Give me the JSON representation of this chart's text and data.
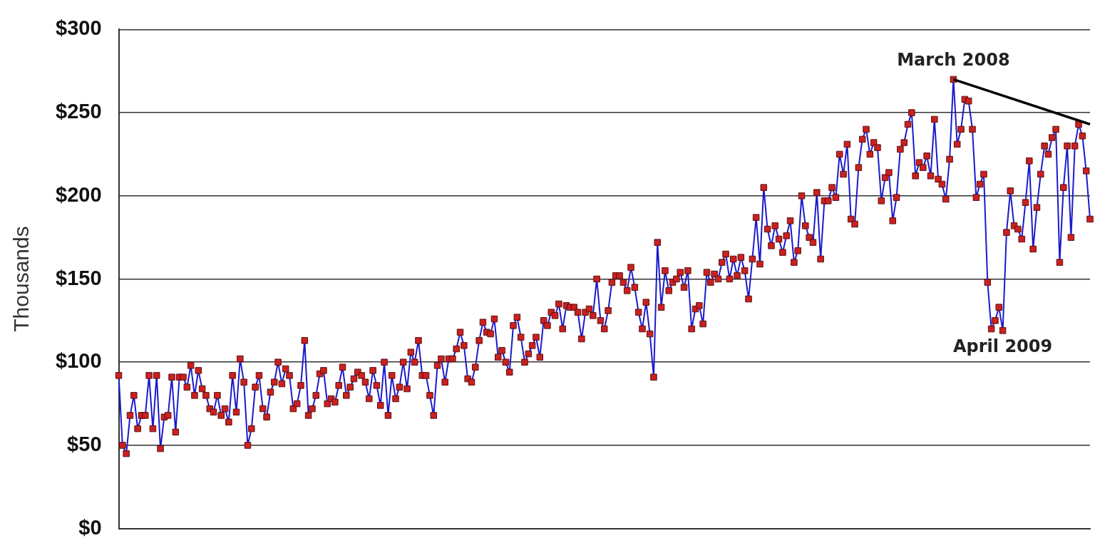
{
  "chart_data": {
    "type": "line",
    "ylabel": "Thousands",
    "categories": [
      null,
      null,
      null,
      null,
      null,
      null,
      null,
      null,
      null,
      null,
      null,
      null,
      null,
      null,
      null,
      null,
      null,
      null,
      null,
      null,
      null,
      null,
      null,
      null,
      null,
      null,
      null,
      null,
      null,
      null,
      null,
      null,
      null,
      null,
      null,
      null,
      null,
      null,
      null,
      null,
      null,
      null,
      null,
      null,
      null,
      null,
      null,
      null,
      null,
      null,
      null,
      null,
      null,
      null,
      null,
      null,
      null,
      null,
      null,
      null,
      null,
      null,
      null,
      null,
      null,
      null,
      null,
      null,
      null,
      null,
      null,
      null,
      null,
      null,
      null,
      null,
      null,
      null,
      null,
      null,
      null,
      null,
      null,
      null,
      null,
      null,
      null,
      null,
      null,
      null,
      null,
      null,
      null,
      null,
      null,
      null,
      null,
      null,
      null,
      null,
      null,
      null,
      null,
      null,
      null,
      null,
      null,
      null,
      null,
      null,
      null,
      null,
      null,
      null,
      null,
      null,
      null,
      null,
      null,
      null,
      null,
      null,
      null,
      null,
      null,
      null,
      null,
      null,
      null,
      null,
      null,
      null,
      null,
      null,
      null,
      null,
      null,
      null,
      null,
      null,
      null,
      null,
      null,
      null,
      null,
      null,
      null,
      null,
      null,
      null,
      null,
      null,
      null,
      null,
      null,
      null,
      null,
      null,
      null,
      null,
      null,
      null,
      null,
      null,
      null,
      null,
      null,
      null,
      null,
      null,
      null,
      null,
      null,
      null,
      null,
      null,
      null,
      null,
      null,
      null,
      null,
      null,
      null,
      null,
      null,
      null,
      null,
      null,
      null,
      null,
      null,
      null,
      null,
      null,
      null,
      null,
      null,
      null,
      null,
      null,
      null,
      null,
      null,
      null,
      null,
      null,
      null,
      null,
      null,
      null,
      null,
      null,
      null,
      null,
      null,
      null,
      null,
      null,
      null,
      null,
      null,
      null,
      null,
      null,
      null,
      null,
      null,
      null,
      null,
      null,
      null,
      null,
      null,
      null,
      null,
      null,
      null,
      null,
      null,
      null,
      null,
      null,
      null,
      null,
      null,
      null,
      null,
      null,
      null,
      null,
      null,
      null,
      null,
      null,
      null,
      null,
      null
    ],
    "series": [
      {
        "color": "#cc2020",
        "values": [
          92,
          50,
          45,
          68,
          80,
          60,
          68,
          68,
          92,
          60,
          92,
          48,
          67,
          68,
          91,
          58,
          91,
          91,
          85,
          98,
          80,
          95,
          84,
          80,
          72,
          70,
          80,
          68,
          72,
          64,
          92,
          70,
          102,
          88,
          50,
          60,
          85,
          92,
          72,
          67,
          82,
          88,
          100,
          87,
          96,
          92,
          72,
          75,
          86,
          113,
          68,
          72,
          80,
          93,
          95,
          75,
          78,
          76,
          86,
          97,
          80,
          85,
          90,
          94,
          92,
          88,
          78,
          95,
          86,
          74,
          100,
          68,
          92,
          78,
          85,
          100,
          84,
          106,
          100,
          113,
          92,
          92,
          80,
          68,
          98,
          102,
          88,
          102,
          102,
          108,
          118,
          110,
          90,
          88,
          97,
          113,
          124,
          118,
          117,
          126,
          103,
          107,
          100,
          94,
          122,
          127,
          115,
          100,
          105,
          110,
          115,
          103,
          125,
          122,
          130,
          128,
          135,
          120,
          134,
          133,
          133,
          130,
          114,
          130,
          132,
          128,
          150,
          125,
          120,
          131,
          148,
          152,
          152,
          148,
          143,
          157,
          145,
          130,
          120,
          136,
          117,
          91,
          172,
          133,
          155,
          143,
          148,
          150,
          154,
          145,
          155,
          120,
          132,
          134,
          123,
          154,
          148,
          153,
          150,
          160,
          165,
          150,
          162,
          152,
          163,
          155,
          138,
          162,
          187,
          159,
          205,
          180,
          170,
          182,
          174,
          166,
          176,
          185,
          160,
          167,
          200,
          182,
          175,
          172,
          202,
          162,
          197,
          197,
          205,
          199,
          225,
          213,
          231,
          186,
          183,
          217,
          234,
          240,
          225,
          232,
          229,
          197,
          211,
          214,
          185,
          199,
          228,
          232,
          243,
          250,
          212,
          220,
          217,
          224,
          212,
          246,
          210,
          207,
          198,
          222,
          270,
          231,
          240,
          258,
          257,
          240,
          199,
          207,
          213,
          148,
          120,
          125,
          133,
          119,
          178,
          203,
          182,
          180,
          174,
          196,
          221,
          168,
          193,
          213,
          230,
          225,
          235,
          240,
          160,
          205,
          230,
          175,
          230,
          243,
          236,
          215,
          186
        ]
      },
      {
        "type": "line",
        "color": "#000000",
        "marker": "none",
        "values": [
          null,
          null,
          null,
          null,
          null,
          null,
          null,
          null,
          null,
          null,
          null,
          null,
          null,
          null,
          null,
          null,
          null,
          null,
          null,
          null,
          null,
          null,
          null,
          null,
          null,
          null,
          null,
          null,
          null,
          null,
          null,
          null,
          null,
          null,
          null,
          null,
          null,
          null,
          null,
          null,
          null,
          null,
          null,
          null,
          null,
          null,
          null,
          null,
          null,
          null,
          null,
          null,
          null,
          null,
          null,
          null,
          null,
          null,
          null,
          null,
          null,
          null,
          null,
          null,
          null,
          null,
          null,
          null,
          null,
          null,
          null,
          null,
          null,
          null,
          null,
          null,
          null,
          null,
          null,
          null,
          null,
          null,
          null,
          null,
          null,
          null,
          null,
          null,
          null,
          null,
          null,
          null,
          null,
          null,
          null,
          null,
          null,
          null,
          null,
          null,
          null,
          null,
          null,
          null,
          null,
          null,
          null,
          null,
          null,
          null,
          null,
          null,
          null,
          null,
          null,
          null,
          null,
          null,
          null,
          null,
          null,
          null,
          null,
          null,
          null,
          null,
          null,
          null,
          null,
          null,
          null,
          null,
          null,
          null,
          null,
          null,
          null,
          null,
          null,
          null,
          null,
          null,
          null,
          null,
          null,
          null,
          null,
          null,
          null,
          null,
          null,
          null,
          null,
          null,
          null,
          null,
          null,
          null,
          null,
          null,
          null,
          null,
          null,
          null,
          null,
          null,
          null,
          null,
          null,
          null,
          null,
          null,
          null,
          null,
          null,
          null,
          null,
          null,
          null,
          null,
          null,
          null,
          null,
          null,
          null,
          null,
          null,
          null,
          null,
          null,
          null,
          null,
          null,
          null,
          null,
          null,
          null,
          null,
          null,
          null,
          null,
          null,
          null,
          null,
          null,
          null,
          null,
          null,
          null,
          null,
          null,
          null,
          null,
          null,
          null,
          null,
          null,
          null,
          null,
          null,
          270,
          null,
          null,
          null,
          null,
          null,
          null,
          null,
          null,
          null,
          null,
          null,
          null,
          null,
          null,
          null,
          null,
          null,
          null,
          null,
          null,
          null,
          null,
          null,
          null,
          null,
          null,
          null,
          null,
          null,
          null,
          null,
          null,
          null,
          null,
          null,
          243
        ]
      }
    ],
    "ylim": [
      0,
      300
    ],
    "yticks": [
      {
        "value": 0,
        "label": "$0"
      },
      {
        "value": 50,
        "label": "$50"
      },
      {
        "value": 100,
        "label": "$100"
      },
      {
        "value": 150,
        "label": "$150"
      },
      {
        "value": 200,
        "label": "$200"
      },
      {
        "value": 250,
        "label": "$250"
      },
      {
        "value": 300,
        "label": "$300"
      }
    ],
    "grid": "y",
    "legend": false,
    "tick_labels": "y",
    "marker": "square",
    "line_style": "solid",
    "annotations": [
      {
        "text": "March 2008",
        "y": 270
      },
      {
        "text": "April 2009",
        "y": 119
      }
    ]
  }
}
